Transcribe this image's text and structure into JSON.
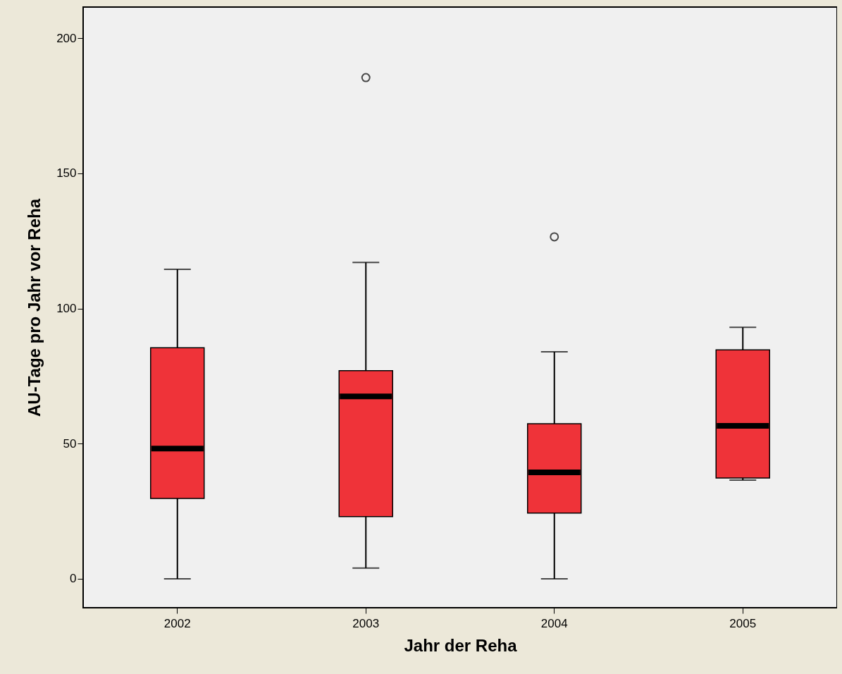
{
  "chart_data": {
    "type": "box",
    "xlabel": "Jahr der Reha",
    "ylabel": "AU-Tage pro Jahr vor Reha",
    "categories": [
      "2002",
      "2003",
      "2004",
      "2005"
    ],
    "color": "#ef3339",
    "boxes": [
      {
        "low": 0,
        "q1": 29.7,
        "median": 48.2,
        "q3": 85.5,
        "high": 114.5
      },
      {
        "low": 4,
        "q1": 23,
        "median": 67.5,
        "q3": 77,
        "high": 117,
        "outliers": [
          185.4
        ]
      },
      {
        "low": 0,
        "q1": 24.3,
        "median": 39.4,
        "q3": 57.4,
        "high": 84,
        "outliers": [
          126.5
        ]
      },
      {
        "low": 36.5,
        "q1": 37.3,
        "median": 56.6,
        "q3": 84.7,
        "high": 93
      }
    ],
    "ylim": [
      -10.7,
      211.5
    ],
    "yticks": [
      0,
      50,
      100,
      150,
      200
    ],
    "grid": false
  }
}
